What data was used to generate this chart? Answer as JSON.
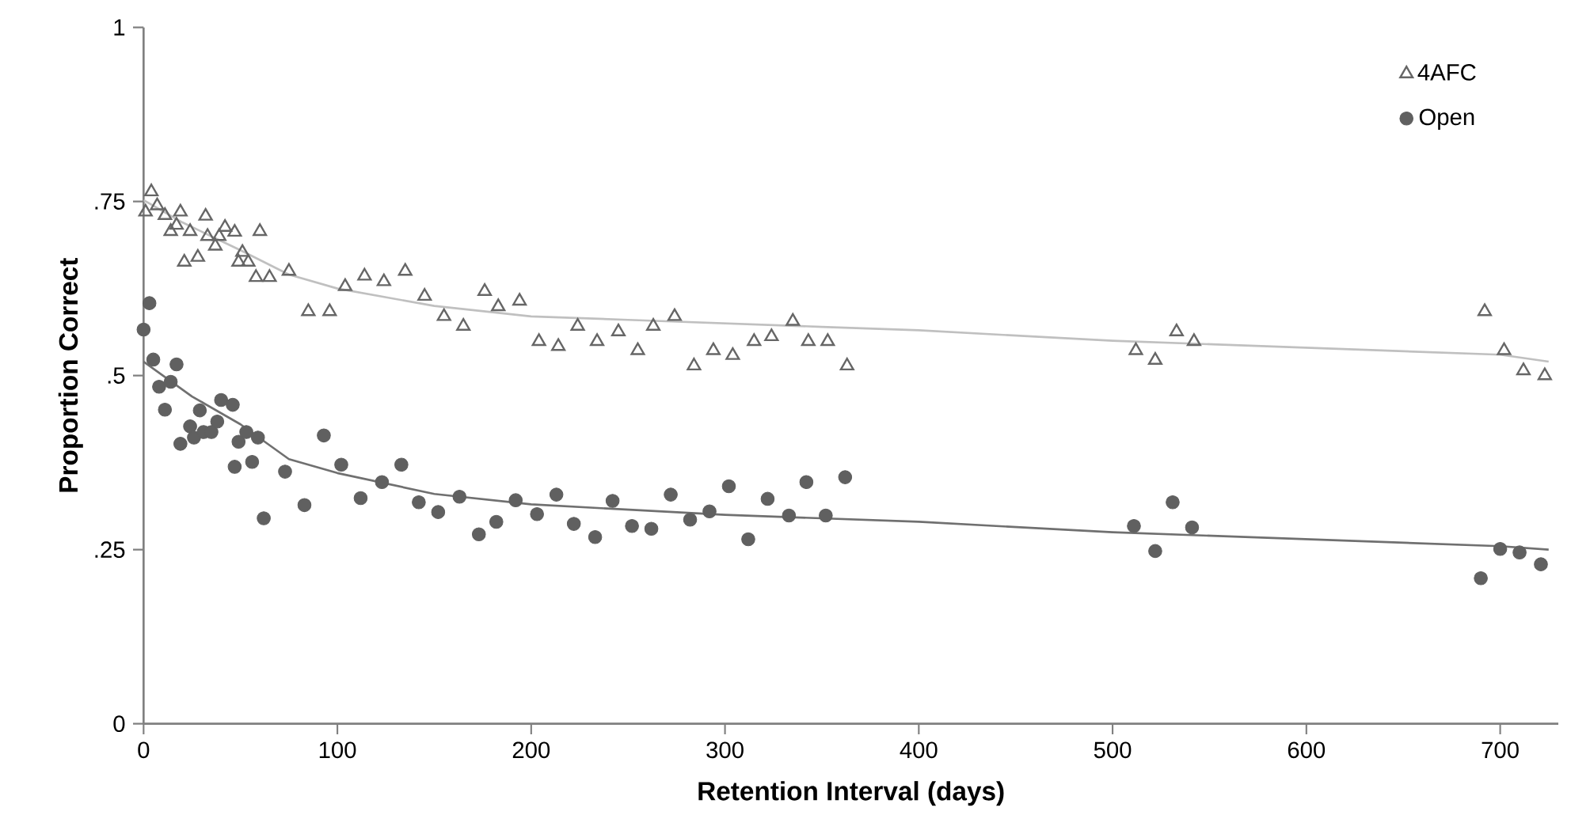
{
  "chart_data": {
    "type": "scatter",
    "xlabel": "Retention Interval (days)",
    "ylabel": "Proportion Correct",
    "xlim": [
      0,
      730
    ],
    "ylim": [
      0,
      1
    ],
    "xticks": [
      0,
      100,
      200,
      300,
      400,
      500,
      600,
      700
    ],
    "yticks": [
      0,
      {
        "value": 0.25,
        "label": ".25"
      },
      {
        "value": 0.5,
        "label": ".5"
      },
      {
        "value": 0.75,
        "label": ".75"
      },
      1
    ],
    "legend": "top right",
    "grid": false,
    "series": [
      {
        "name": "4AFC",
        "marker": "triangle",
        "color": "#666666",
        "x": [
          1,
          4,
          7,
          11,
          14,
          17,
          19,
          21,
          24,
          28,
          32,
          33,
          37,
          39,
          42,
          47,
          49,
          51,
          54,
          58,
          60,
          65,
          75,
          85,
          96,
          104,
          114,
          124,
          135,
          145,
          155,
          165,
          176,
          183,
          194,
          204,
          214,
          224,
          234,
          245,
          255,
          263,
          274,
          284,
          294,
          304,
          315,
          324,
          335,
          343,
          353,
          363,
          512,
          522,
          533,
          542,
          692,
          702,
          712,
          723
        ],
        "values": [
          0.735,
          0.764,
          0.744,
          0.73,
          0.707,
          0.716,
          0.735,
          0.663,
          0.707,
          0.67,
          0.729,
          0.7,
          0.686,
          0.7,
          0.713,
          0.706,
          0.663,
          0.677,
          0.663,
          0.641,
          0.707,
          0.641,
          0.65,
          0.592,
          0.592,
          0.628,
          0.643,
          0.635,
          0.65,
          0.614,
          0.585,
          0.571,
          0.621,
          0.599,
          0.607,
          0.549,
          0.542,
          0.571,
          0.549,
          0.563,
          0.536,
          0.571,
          0.585,
          0.514,
          0.536,
          0.529,
          0.549,
          0.556,
          0.578,
          0.549,
          0.549,
          0.514,
          0.536,
          0.522,
          0.563,
          0.549,
          0.592,
          0.536,
          0.507,
          0.5
        ]
      },
      {
        "name": "Open",
        "marker": "circle",
        "color": "#606060",
        "x": [
          0,
          3,
          5,
          8,
          11,
          14,
          17,
          19,
          24,
          26,
          29,
          31,
          35,
          38,
          40,
          46,
          47,
          49,
          53,
          56,
          59,
          62,
          73,
          83,
          93,
          102,
          112,
          123,
          133,
          142,
          152,
          163,
          173,
          182,
          192,
          203,
          213,
          222,
          233,
          242,
          252,
          262,
          272,
          282,
          292,
          302,
          312,
          322,
          333,
          342,
          352,
          362,
          511,
          522,
          531,
          541,
          690,
          700,
          710,
          721
        ],
        "values": [
          0.566,
          0.604,
          0.523,
          0.484,
          0.451,
          0.491,
          0.516,
          0.402,
          0.427,
          0.411,
          0.45,
          0.419,
          0.419,
          0.434,
          0.465,
          0.458,
          0.369,
          0.405,
          0.419,
          0.376,
          0.411,
          0.295,
          0.362,
          0.314,
          0.414,
          0.372,
          0.324,
          0.347,
          0.372,
          0.318,
          0.304,
          0.326,
          0.272,
          0.29,
          0.321,
          0.301,
          0.329,
          0.287,
          0.268,
          0.32,
          0.284,
          0.28,
          0.329,
          0.293,
          0.305,
          0.341,
          0.265,
          0.323,
          0.299,
          0.347,
          0.299,
          0.354,
          0.284,
          0.248,
          0.318,
          0.282,
          0.209,
          0.251,
          0.246,
          0.229
        ]
      },
      {
        "type": "line",
        "color": "#c0c0c0",
        "x": [
          0,
          20,
          50,
          75,
          100,
          150,
          200,
          250,
          300,
          350,
          400,
          500,
          700,
          725
        ],
        "values": [
          0.752,
          0.72,
          0.68,
          0.645,
          0.625,
          0.6,
          0.585,
          0.58,
          0.575,
          0.57,
          0.565,
          0.55,
          0.53,
          0.52
        ]
      },
      {
        "type": "line",
        "color": "#707070",
        "x": [
          0,
          25,
          50,
          75,
          100,
          150,
          200,
          300,
          400,
          500,
          700,
          725
        ],
        "values": [
          0.52,
          0.47,
          0.43,
          0.38,
          0.36,
          0.33,
          0.315,
          0.3,
          0.29,
          0.275,
          0.255,
          0.25
        ]
      }
    ]
  }
}
